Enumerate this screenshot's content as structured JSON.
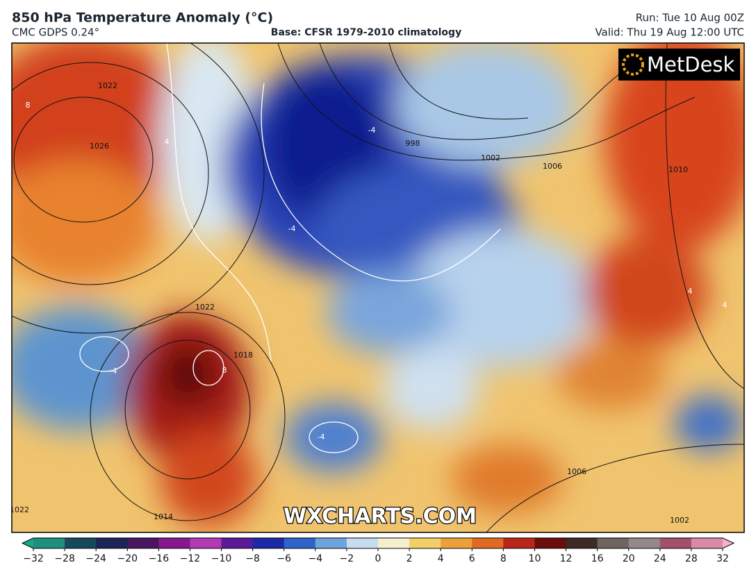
{
  "header": {
    "title": "850 hPa Temperature Anomaly (°C)",
    "model": "CMC GDPS 0.24°",
    "base": "Base: CFSR 1979-2010 climatology",
    "run": "Run: Tue 10 Aug 00Z",
    "valid": "Valid: Thu 19 Aug 12:00 UTC"
  },
  "map": {
    "logo": "MetDesk",
    "watermark": "WXCHARTS.COM",
    "contour_labels": [
      "1022",
      "8",
      "1026",
      "4",
      "-4",
      "-4",
      "998",
      "1002",
      "1006",
      "1010",
      "1022",
      "1018",
      "8",
      "-4",
      "4",
      "4",
      "-4",
      "1006",
      "1014",
      "1022",
      "1002"
    ]
  },
  "colorbar": {
    "ticks": [
      {
        "value": -32,
        "label": "−32"
      },
      {
        "value": -28,
        "label": "−28"
      },
      {
        "value": -24,
        "label": "−24"
      },
      {
        "value": -20,
        "label": "−20"
      },
      {
        "value": -16,
        "label": "−16"
      },
      {
        "value": -12,
        "label": "−12"
      },
      {
        "value": -10,
        "label": "−10"
      },
      {
        "value": -8,
        "label": "−8"
      },
      {
        "value": -6,
        "label": "−6"
      },
      {
        "value": -4,
        "label": "−4"
      },
      {
        "value": -2,
        "label": "−2"
      },
      0,
      2,
      4,
      6,
      8,
      10,
      12,
      16,
      20,
      24,
      28,
      32
    ],
    "colors": [
      "#1f8f7e",
      "#16495e",
      "#1c2458",
      "#4a1660",
      "#86188f",
      "#b23bb5",
      "#5a1a9a",
      "#1c2aa8",
      "#2f63c8",
      "#6ea4dc",
      "#c6dcef",
      "#f6efcf",
      "#f3cf6a",
      "#eba13a",
      "#df6a22",
      "#b8261a",
      "#6b0d0d",
      "#3d2a26",
      "#6e6560",
      "#94898a",
      "#a4506a",
      "#d98aa8"
    ],
    "extend_colors": [
      "#19a58a",
      "#f2b3cc"
    ]
  }
}
